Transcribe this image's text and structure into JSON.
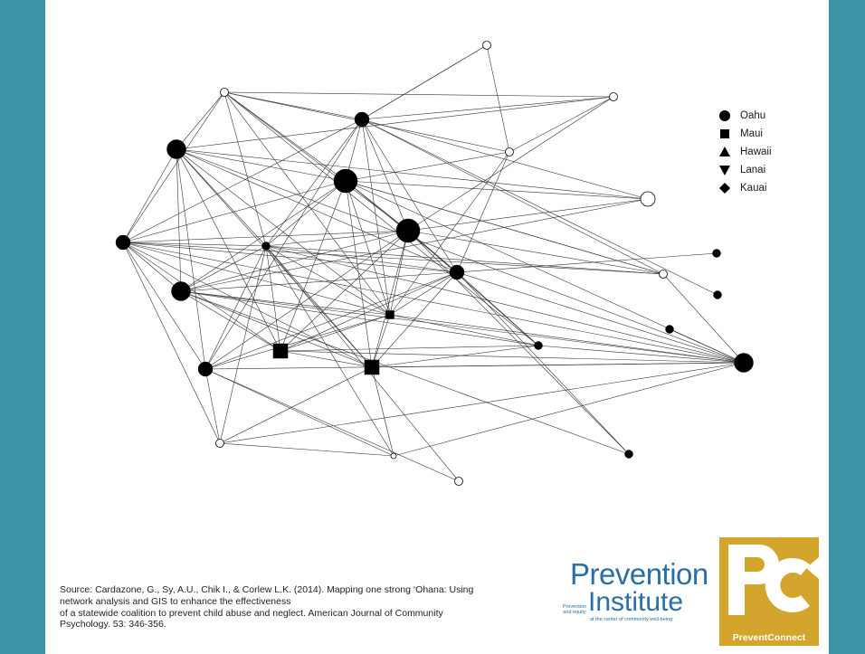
{
  "legend": [
    {
      "label": "Oahu",
      "shape": "circle"
    },
    {
      "label": "Maui",
      "shape": "square"
    },
    {
      "label": "Hawaii",
      "shape": "triangle-up"
    },
    {
      "label": "Lanai",
      "shape": "triangle-down"
    },
    {
      "label": "Kauai",
      "shape": "diamond"
    }
  ],
  "citation": [
    "Source: Cardazone, G., Sy, A.U., Chik I., & Corlew L.K. (2014). Mapping one strong ‘Ohana: Using",
    "network analysis and GIS to enhance the effectiveness",
    "of a statewide coalition to prevent child abuse and neglect. American Journal of Community",
    "Psychology. 53: 346-356."
  ],
  "logos": {
    "prevention_top": "Prevention",
    "prevention_side": "Prevention and equity",
    "prevention_bottom": "Institute",
    "prevention_tagline": "at the center of community well-being",
    "pc_mark": "PC",
    "pc_name": "PreventConnect"
  },
  "network": {
    "nodes": [
      {
        "shape": "circle",
        "filled": false,
        "size": "small"
      },
      {
        "shape": "circle",
        "filled": false,
        "size": "small"
      },
      {
        "shape": "circle",
        "filled": true,
        "size": "medium"
      },
      {
        "shape": "circle",
        "filled": false,
        "size": "small"
      },
      {
        "shape": "circle",
        "filled": true,
        "size": "large"
      },
      {
        "shape": "circle",
        "filled": false,
        "size": "small"
      },
      {
        "shape": "circle",
        "filled": true,
        "size": "xlarge"
      },
      {
        "shape": "circle",
        "filled": false,
        "size": "medium"
      },
      {
        "shape": "circle",
        "filled": true,
        "size": "xlarge"
      },
      {
        "shape": "circle",
        "filled": true,
        "size": "medium"
      },
      {
        "shape": "circle",
        "filled": true,
        "size": "small"
      },
      {
        "shape": "circle",
        "filled": false,
        "size": "small"
      },
      {
        "shape": "circle",
        "filled": true,
        "size": "medium"
      },
      {
        "shape": "square",
        "filled": true,
        "size": "small"
      },
      {
        "shape": "circle",
        "filled": true,
        "size": "large"
      },
      {
        "shape": "square",
        "filled": true,
        "size": "medium"
      },
      {
        "shape": "square",
        "filled": true,
        "size": "medium"
      },
      {
        "shape": "circle",
        "filled": true,
        "size": "medium"
      },
      {
        "shape": "circle",
        "filled": true,
        "size": "small"
      },
      {
        "shape": "circle",
        "filled": true,
        "size": "large"
      },
      {
        "shape": "circle",
        "filled": false,
        "size": "small"
      },
      {
        "shape": "circle",
        "filled": false,
        "size": "tiny"
      },
      {
        "shape": "circle",
        "filled": true,
        "size": "small"
      },
      {
        "shape": "circle",
        "filled": false,
        "size": "small"
      },
      {
        "shape": "circle",
        "filled": true,
        "size": "small"
      },
      {
        "shape": "circle",
        "filled": true,
        "size": "small"
      },
      {
        "shape": "circle",
        "filled": true,
        "size": "small"
      }
    ],
    "edges": [
      [
        2,
        3
      ],
      [
        2,
        6
      ],
      [
        2,
        7
      ],
      [
        2,
        9
      ],
      [
        2,
        10
      ],
      [
        2,
        12
      ],
      [
        2,
        13
      ],
      [
        2,
        17
      ],
      [
        2,
        11
      ],
      [
        2,
        0
      ],
      [
        2,
        1
      ],
      [
        4,
        1
      ],
      [
        4,
        6
      ],
      [
        4,
        7
      ],
      [
        4,
        10
      ],
      [
        4,
        12
      ],
      [
        4,
        13
      ],
      [
        4,
        15
      ],
      [
        4,
        16
      ],
      [
        4,
        14
      ],
      [
        4,
        17
      ],
      [
        4,
        19
      ],
      [
        3,
        1
      ],
      [
        3,
        5
      ],
      [
        3,
        6
      ],
      [
        3,
        8
      ],
      [
        3,
        9
      ],
      [
        3,
        10
      ],
      [
        3,
        13
      ],
      [
        3,
        18
      ],
      [
        6,
        7
      ],
      [
        6,
        9
      ],
      [
        6,
        10
      ],
      [
        6,
        11
      ],
      [
        6,
        12
      ],
      [
        6,
        13
      ],
      [
        6,
        14
      ],
      [
        6,
        15
      ],
      [
        6,
        16
      ],
      [
        6,
        19
      ],
      [
        8,
        9
      ],
      [
        8,
        10
      ],
      [
        8,
        12
      ],
      [
        8,
        13
      ],
      [
        8,
        14
      ],
      [
        8,
        15
      ],
      [
        8,
        16
      ],
      [
        8,
        17
      ],
      [
        8,
        18
      ],
      [
        9,
        10
      ],
      [
        9,
        11
      ],
      [
        9,
        12
      ],
      [
        9,
        13
      ],
      [
        9,
        14
      ],
      [
        9,
        15
      ],
      [
        9,
        16
      ],
      [
        9,
        17
      ],
      [
        9,
        19
      ],
      [
        9,
        20
      ],
      [
        10,
        12
      ],
      [
        10,
        13
      ],
      [
        10,
        14
      ],
      [
        10,
        15
      ],
      [
        10,
        16
      ],
      [
        10,
        17
      ],
      [
        10,
        19
      ],
      [
        10,
        20
      ],
      [
        10,
        23
      ],
      [
        10,
        21
      ],
      [
        12,
        13
      ],
      [
        12,
        14
      ],
      [
        12,
        15
      ],
      [
        12,
        16
      ],
      [
        12,
        18
      ],
      [
        12,
        19
      ],
      [
        12,
        22
      ],
      [
        13,
        14
      ],
      [
        13,
        15
      ],
      [
        13,
        16
      ],
      [
        13,
        17
      ],
      [
        13,
        18
      ],
      [
        13,
        19
      ],
      [
        14,
        15
      ],
      [
        14,
        16
      ],
      [
        14,
        18
      ],
      [
        14,
        19
      ],
      [
        15,
        16
      ],
      [
        15,
        18
      ],
      [
        15,
        19
      ],
      [
        16,
        18
      ],
      [
        16,
        19
      ],
      [
        16,
        20
      ],
      [
        16,
        21
      ],
      [
        17,
        19
      ],
      [
        17,
        20
      ],
      [
        17,
        21
      ],
      [
        17,
        23
      ],
      [
        18,
        19
      ],
      [
        19,
        20
      ],
      [
        19,
        21
      ],
      [
        20,
        21
      ],
      [
        0,
        2
      ],
      [
        0,
        5
      ],
      [
        1,
        8
      ],
      [
        5,
        1
      ],
      [
        5,
        13
      ],
      [
        5,
        12
      ],
      [
        7,
        8
      ],
      [
        11,
        8
      ],
      [
        11,
        19
      ],
      [
        22,
        14
      ],
      [
        22,
        8
      ],
      [
        24,
        19
      ],
      [
        25,
        2
      ],
      [
        26,
        12
      ],
      [
        11,
        6
      ],
      [
        2,
        8
      ],
      [
        3,
        4
      ],
      [
        6,
        8
      ],
      [
        12,
        17
      ],
      [
        4,
        9
      ],
      [
        7,
        14
      ],
      [
        5,
        6
      ],
      [
        11,
        10
      ]
    ]
  }
}
